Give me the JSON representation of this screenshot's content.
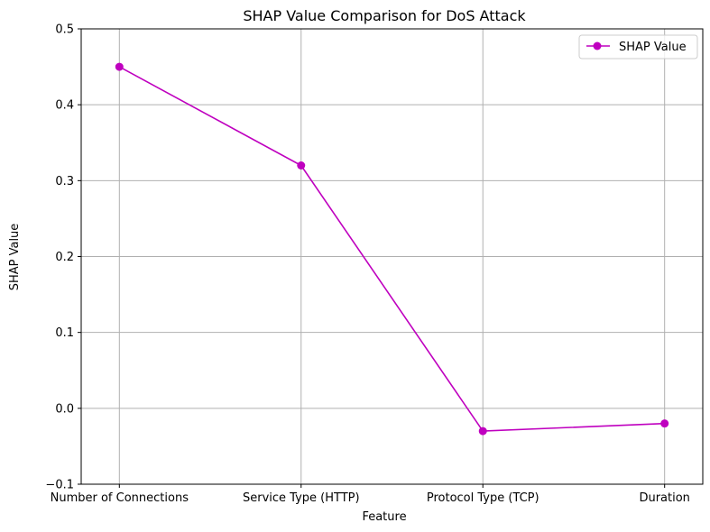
{
  "chart_data": {
    "type": "line",
    "title": "SHAP Value Comparison for DoS Attack",
    "xlabel": "Feature",
    "ylabel": "SHAP Value",
    "categories": [
      "Number of Connections",
      "Service Type (HTTP)",
      "Protocol Type (TCP)",
      "Duration"
    ],
    "series": [
      {
        "name": "SHAP Value",
        "values": [
          0.45,
          0.32,
          -0.03,
          -0.02
        ],
        "color": "#bf00bf",
        "marker": "circle"
      }
    ],
    "ylim": [
      -0.1,
      0.5
    ],
    "yticks": [
      -0.1,
      0.0,
      0.1,
      0.2,
      0.3,
      0.4,
      0.5
    ],
    "ytick_labels": [
      "−0.1",
      "0.0",
      "0.1",
      "0.2",
      "0.3",
      "0.4",
      "0.5"
    ],
    "grid": true,
    "legend_position": "top-right"
  }
}
